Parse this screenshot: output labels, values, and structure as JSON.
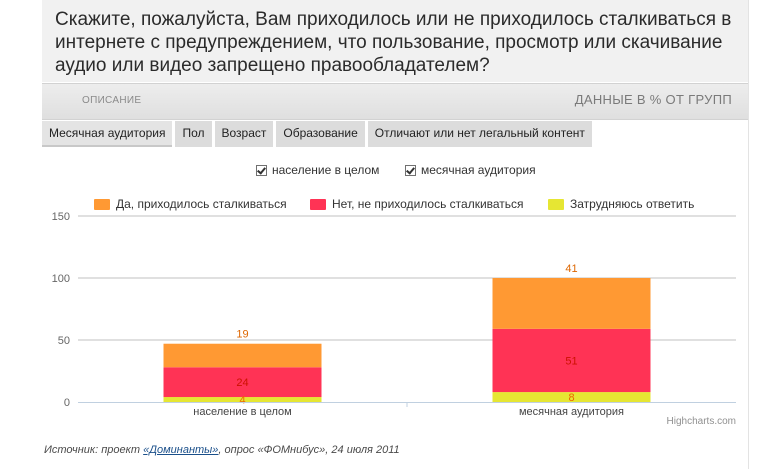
{
  "question": "Скажите, пожалуйста, Вам приходилось или не приходилось сталкиваться в интернете с предупреждением, что пользование, просмотр или скачивание аудио или видео запрещено правообладателем?",
  "desc_bar": {
    "description_label": "ОПИСАНИЕ",
    "data_label": "ДАННЫЕ В % ОТ ГРУПП"
  },
  "tabs": [
    {
      "label": "Месячная аудитория",
      "active": true
    },
    {
      "label": "Пол",
      "active": false
    },
    {
      "label": "Возраст",
      "active": false
    },
    {
      "label": "Образование",
      "active": false
    },
    {
      "label": "Отличают или нет легальный контент",
      "active": false
    }
  ],
  "filters": [
    {
      "label": "население в целом",
      "checked": true
    },
    {
      "label": "месячная аудитория",
      "checked": true
    }
  ],
  "credit": "Highcharts.com",
  "source": {
    "prefix": "Источник: проект ",
    "link_text": "«Доминанты»",
    "suffix": ", опрос «ФОМнибус», 24 июля 2011"
  },
  "colors": {
    "orange": "#ff9933",
    "red": "#ff3355",
    "yellow": "#e6e633"
  },
  "chart_data": {
    "type": "bar",
    "stacked": true,
    "categories": [
      "население в целом",
      "месячная аудитория"
    ],
    "series": [
      {
        "name": "Да, приходилось сталкиваться",
        "color": "#ff9933",
        "values": [
          19,
          41
        ]
      },
      {
        "name": "Нет, не приходилось сталкиваться",
        "color": "#ff3355",
        "values": [
          24,
          51
        ]
      },
      {
        "name": "Затрудняюсь ответить",
        "color": "#e6e633",
        "values": [
          4,
          8
        ]
      }
    ],
    "yticks": [
      "0",
      "50",
      "100",
      "150"
    ],
    "ylim": [
      0,
      150
    ],
    "grid": true,
    "legend_position": "top"
  }
}
